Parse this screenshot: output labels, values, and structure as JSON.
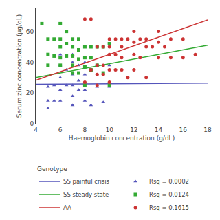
{
  "chart_data": {
    "type": "scatter",
    "xlabel": "Haemoglobin concentration (g/dL)",
    "ylabel": "Serum zinc concentration (µg/dL)",
    "xlim": [
      4,
      18
    ],
    "ylim": [
      0,
      75
    ],
    "xticks": [
      4,
      6,
      8,
      10,
      12,
      14,
      16,
      18
    ],
    "yticks": [
      0,
      20,
      40,
      60
    ],
    "grid": false,
    "legend_title": "Genotype",
    "series": [
      {
        "name": "SS painful crisis",
        "type": "line",
        "line_style": "solid",
        "color": "#5555bb",
        "x": [
          4,
          18
        ],
        "values": [
          25.7,
          26.4
        ]
      },
      {
        "name": "Rsq = 0.0002",
        "type": "scatter",
        "marker": "triangle",
        "color": "#5555bb",
        "x": [
          5,
          5,
          5,
          5.5,
          5.5,
          6,
          6,
          6,
          6,
          6,
          6.5,
          6.5,
          7,
          7,
          7,
          7,
          7,
          7,
          7.5,
          7.5,
          7.5,
          8,
          8,
          8,
          8,
          8.5,
          8.5,
          9,
          9,
          9.5,
          10,
          10
        ],
        "values": [
          24,
          15,
          10,
          25,
          15,
          45,
          38,
          30,
          22,
          15,
          35,
          25,
          45,
          40,
          32,
          25,
          18,
          12,
          38,
          28,
          22,
          40,
          32,
          22,
          15,
          35,
          12,
          38,
          24,
          14,
          38,
          24
        ]
      },
      {
        "name": "SS steady state",
        "type": "line",
        "line_style": "solid",
        "color": "#33aa33",
        "x": [
          4,
          18
        ],
        "values": [
          30,
          51
        ]
      },
      {
        "name": "Rsq = 0.0124",
        "type": "scatter",
        "marker": "square",
        "color": "#33aa33",
        "x": [
          4.5,
          5,
          5,
          5,
          5.5,
          5.5,
          6,
          6,
          6,
          6,
          6,
          6.5,
          6.5,
          6.5,
          7,
          7,
          7,
          7,
          7,
          7.5,
          7.5,
          7.5,
          7.5,
          8,
          8,
          8,
          8,
          8.5,
          8.5,
          8.5,
          9,
          9,
          9.5,
          9.5,
          10,
          10
        ],
        "values": [
          65,
          55,
          45,
          38,
          55,
          44,
          65,
          55,
          50,
          43,
          38,
          60,
          52,
          44,
          55,
          50,
          44,
          38,
          33,
          55,
          48,
          42,
          33,
          50,
          43,
          37,
          25,
          50,
          43,
          35,
          50,
          38,
          50,
          33,
          52,
          25
        ]
      },
      {
        "name": "AA",
        "type": "line",
        "line_style": "solid",
        "color": "#cc3333",
        "x": [
          4,
          18
        ],
        "values": [
          28.2,
          67.4
        ]
      },
      {
        "name": "Rsq = 0.1615",
        "type": "scatter",
        "marker": "circle",
        "color": "#cc3333",
        "x": [
          8,
          8,
          8.5,
          8.5,
          9,
          9,
          9,
          9,
          9.5,
          9.5,
          9.5,
          10,
          10,
          10,
          10,
          10,
          10.5,
          10.5,
          10.5,
          11,
          11,
          11,
          11,
          11.5,
          11.5,
          12,
          12,
          12,
          12,
          12.5,
          12.5,
          13,
          13,
          13,
          13.5,
          14,
          14,
          14,
          14.5,
          15,
          15,
          16,
          16,
          17
        ],
        "values": [
          68,
          27,
          68,
          35,
          50,
          38,
          32,
          25,
          50,
          38,
          32,
          55,
          50,
          45,
          35,
          27,
          55,
          45,
          35,
          55,
          50,
          43,
          35,
          55,
          30,
          60,
          53,
          45,
          35,
          55,
          43,
          55,
          50,
          30,
          50,
          60,
          53,
          43,
          50,
          55,
          43,
          55,
          43,
          45
        ]
      }
    ]
  }
}
